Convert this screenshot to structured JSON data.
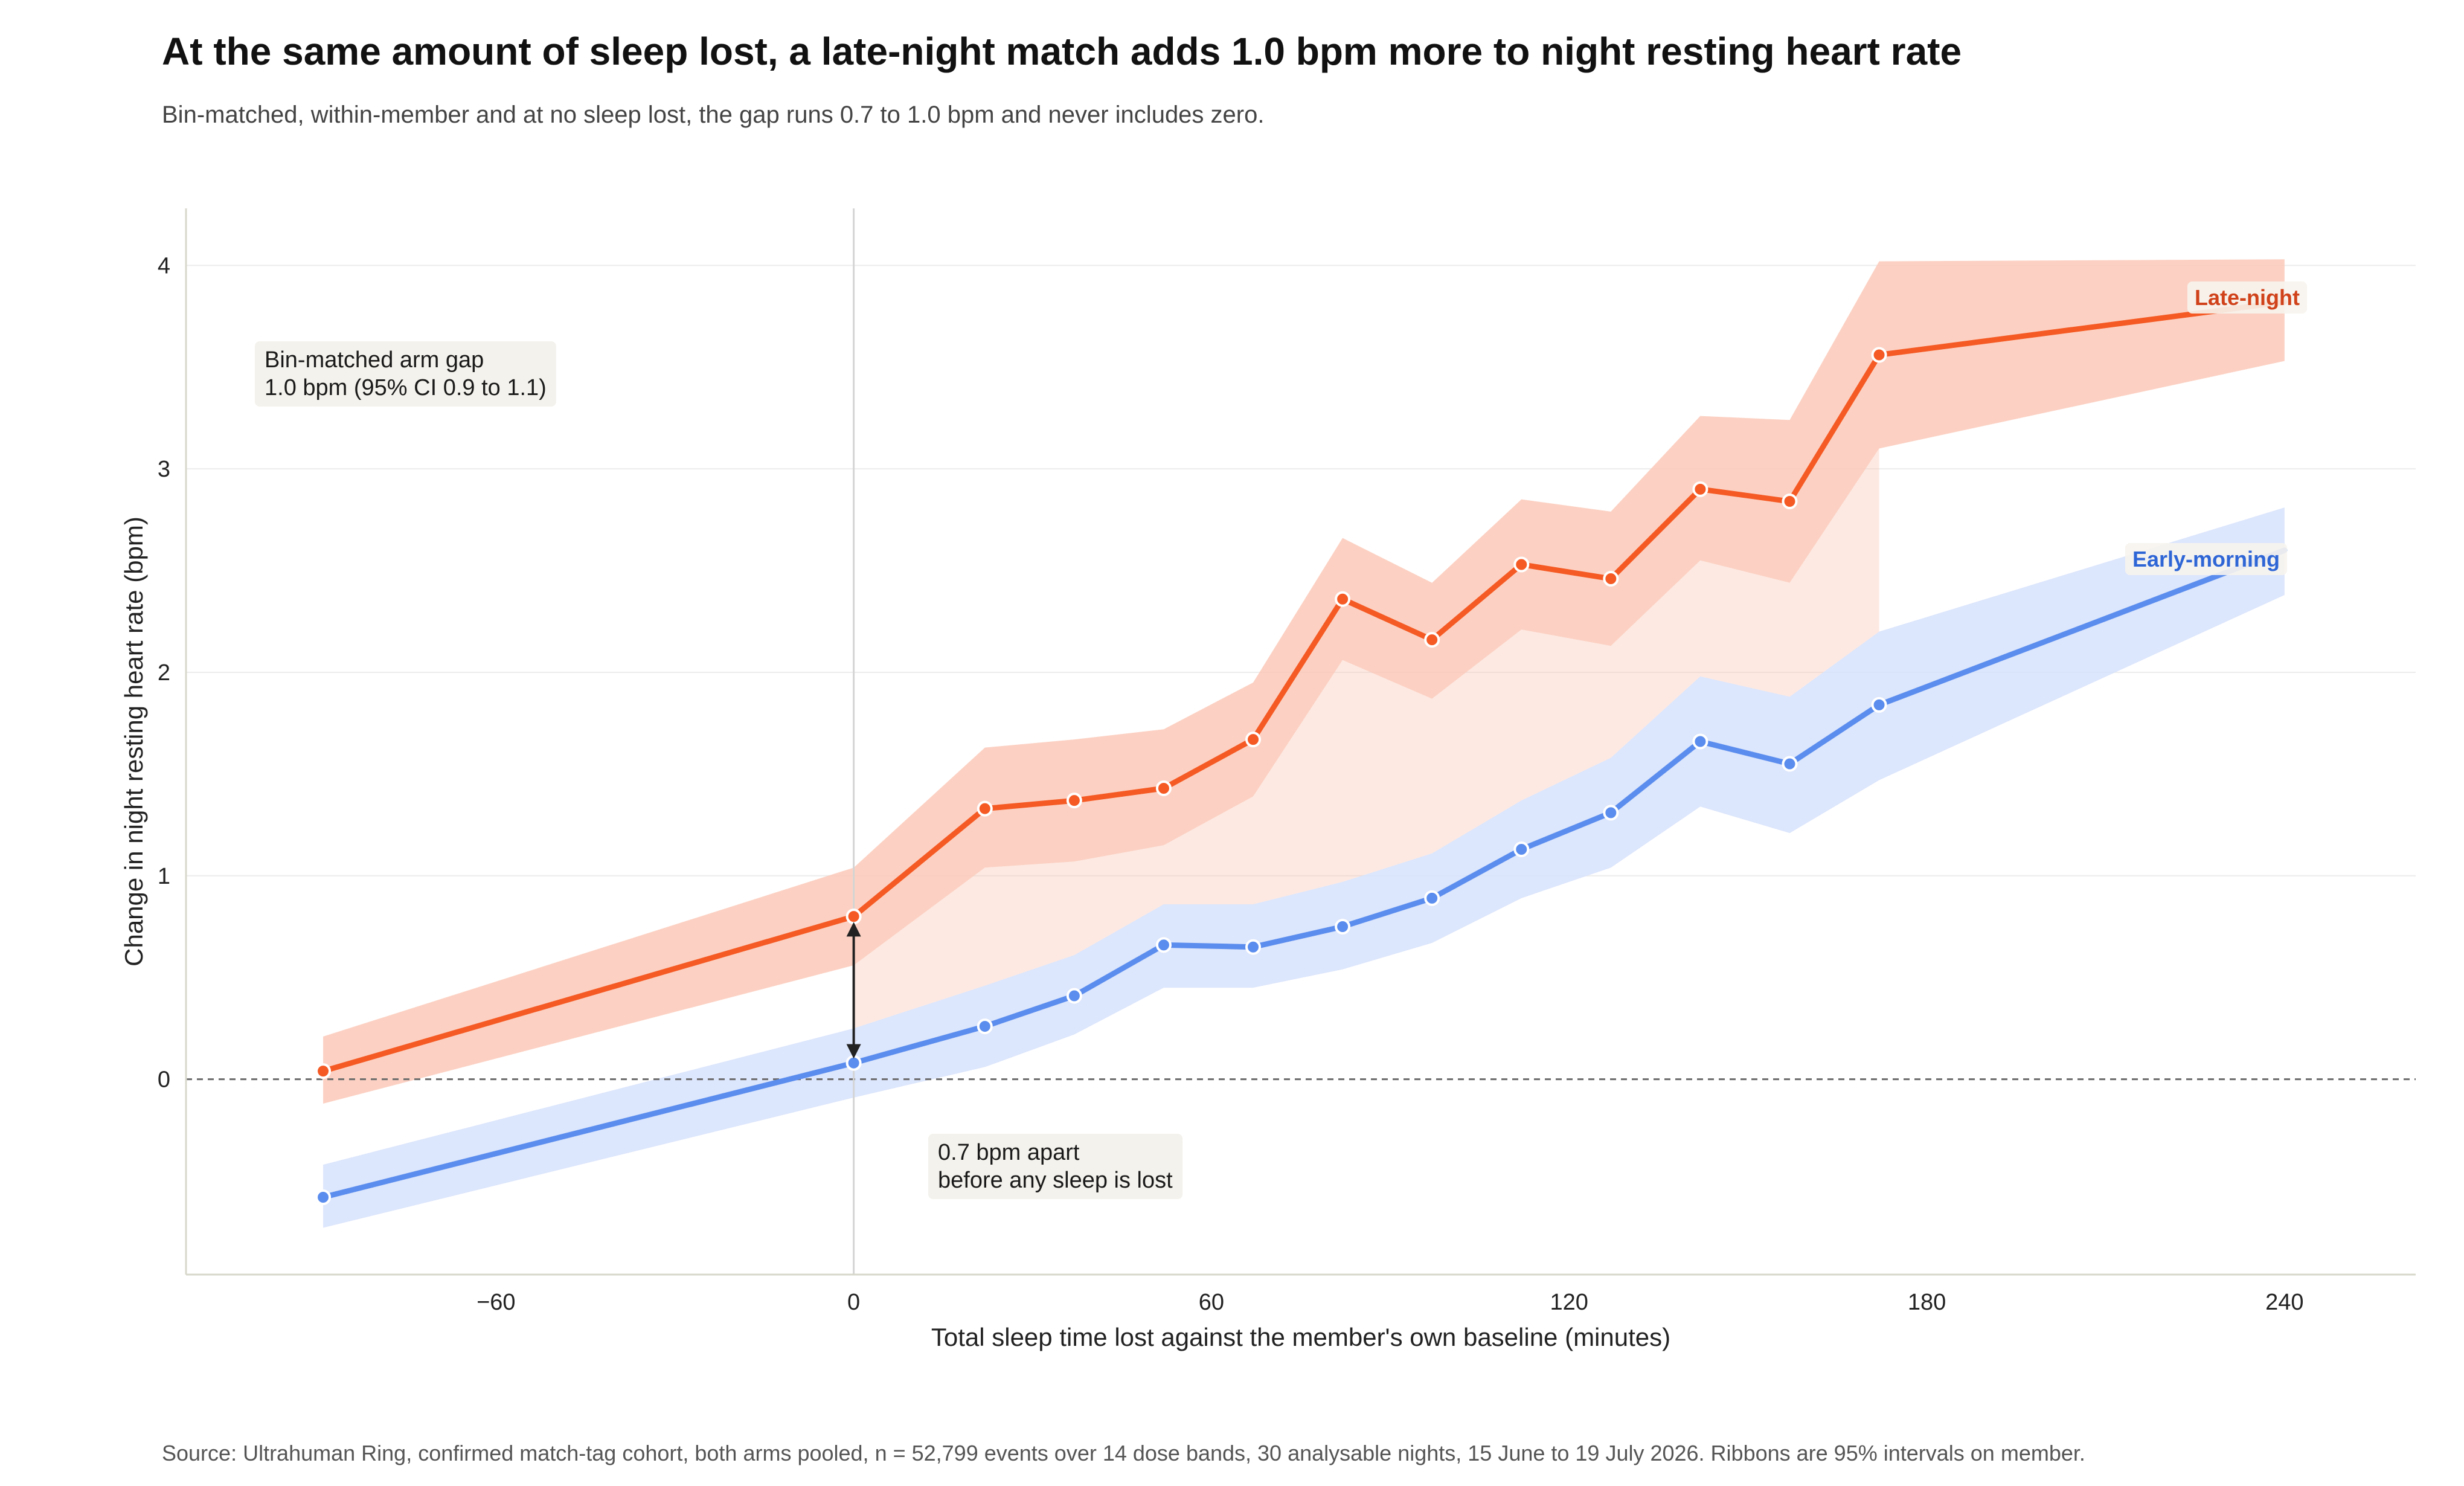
{
  "page": {
    "title": "At the same amount of sleep lost, a late-night match adds 1.0 bpm more to night resting heart rate",
    "subtitle": "Bin-matched, within-member and at no sleep lost, the gap runs 0.7 to 1.0 bpm and never includes zero.",
    "source": "Source: Ultrahuman Ring, confirmed match-tag cohort, both arms pooled, n = 52,799 events over 14 dose bands, 30 analysable nights, 15 June to 19 July 2026. Ribbons are 95% intervals on member."
  },
  "chart_data": {
    "type": "line",
    "xlabel": "Total sleep time lost against the member's own baseline (minutes)",
    "ylabel": "Change in night resting heart rate (bpm)",
    "xlim": [
      -112,
      262
    ],
    "ylim": [
      -0.96,
      4.28
    ],
    "xticks": [
      -60,
      0,
      60,
      120,
      180,
      240
    ],
    "xtick_labels": [
      "−60",
      "0",
      "60",
      "120",
      "180",
      "240"
    ],
    "yticks": [
      0,
      1,
      2,
      3,
      4
    ],
    "ytick_labels": [
      "0",
      "1",
      "2",
      "3",
      "4"
    ],
    "grid": "horizontal",
    "reference_line_y": 0,
    "reference_line_x": 0,
    "colors": {
      "late_line": "#f55a24",
      "late_band": "#fcc9b8",
      "late_label": "#d0421a",
      "early_line": "#5b8dee",
      "early_band": "#d6e2fb",
      "early_label": "#2f66d6",
      "gap_fill": "#f9c8b6"
    },
    "series": [
      {
        "name": "Late-night",
        "x": [
          -89,
          0,
          22,
          37,
          52,
          67,
          82,
          97,
          112,
          127,
          142,
          157,
          172,
          240
        ],
        "y": [
          0.04,
          0.8,
          1.33,
          1.37,
          1.43,
          1.67,
          2.36,
          2.16,
          2.53,
          2.46,
          2.9,
          2.84,
          3.56,
          3.82
        ],
        "lower": [
          -0.12,
          0.56,
          1.04,
          1.07,
          1.15,
          1.39,
          2.06,
          1.87,
          2.21,
          2.13,
          2.55,
          2.44,
          3.1,
          3.53
        ],
        "upper": [
          0.21,
          1.04,
          1.63,
          1.67,
          1.72,
          1.95,
          2.66,
          2.44,
          2.85,
          2.79,
          3.26,
          3.24,
          4.02,
          4.03
        ]
      },
      {
        "name": "Early-morning",
        "x": [
          -89,
          0,
          22,
          37,
          52,
          67,
          82,
          97,
          112,
          127,
          142,
          157,
          172,
          240
        ],
        "y": [
          -0.58,
          0.08,
          0.26,
          0.41,
          0.66,
          0.65,
          0.75,
          0.89,
          1.13,
          1.31,
          1.66,
          1.55,
          1.84,
          2.6
        ],
        "lower": [
          -0.73,
          -0.09,
          0.06,
          0.22,
          0.45,
          0.45,
          0.54,
          0.67,
          0.89,
          1.04,
          1.34,
          1.21,
          1.47,
          2.38
        ],
        "upper": [
          -0.42,
          0.25,
          0.46,
          0.61,
          0.86,
          0.86,
          0.97,
          1.11,
          1.37,
          1.58,
          1.98,
          1.88,
          2.2,
          2.81
        ]
      }
    ],
    "gap_span_x": [
      0,
      172
    ],
    "annotations": {
      "arm_gap": [
        "Bin-matched arm gap",
        "1.0 bpm  (95% CI 0.9 to 1.1)"
      ],
      "zero_gap": [
        "0.7 bpm apart",
        "before any sleep is lost"
      ]
    }
  }
}
